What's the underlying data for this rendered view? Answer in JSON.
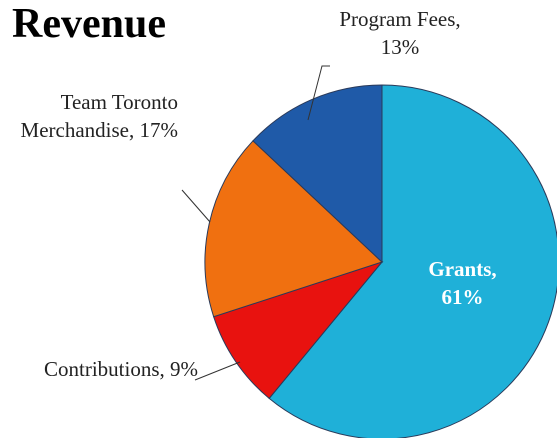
{
  "chart_data": {
    "type": "pie",
    "title": "Revenue",
    "categories": [
      "Grants",
      "Contributions",
      "Team Toronto Merchandise",
      "Program Fees"
    ],
    "values": [
      61,
      9,
      17,
      13
    ],
    "value_labels": [
      "Grants, 61%",
      "Contributions, 9%",
      "Team Toronto Merchandise, 17%",
      "Program Fees, 13%"
    ],
    "colors": [
      "#1fb0d8",
      "#e8120f",
      "#f07010",
      "#1f5aa8"
    ]
  }
}
